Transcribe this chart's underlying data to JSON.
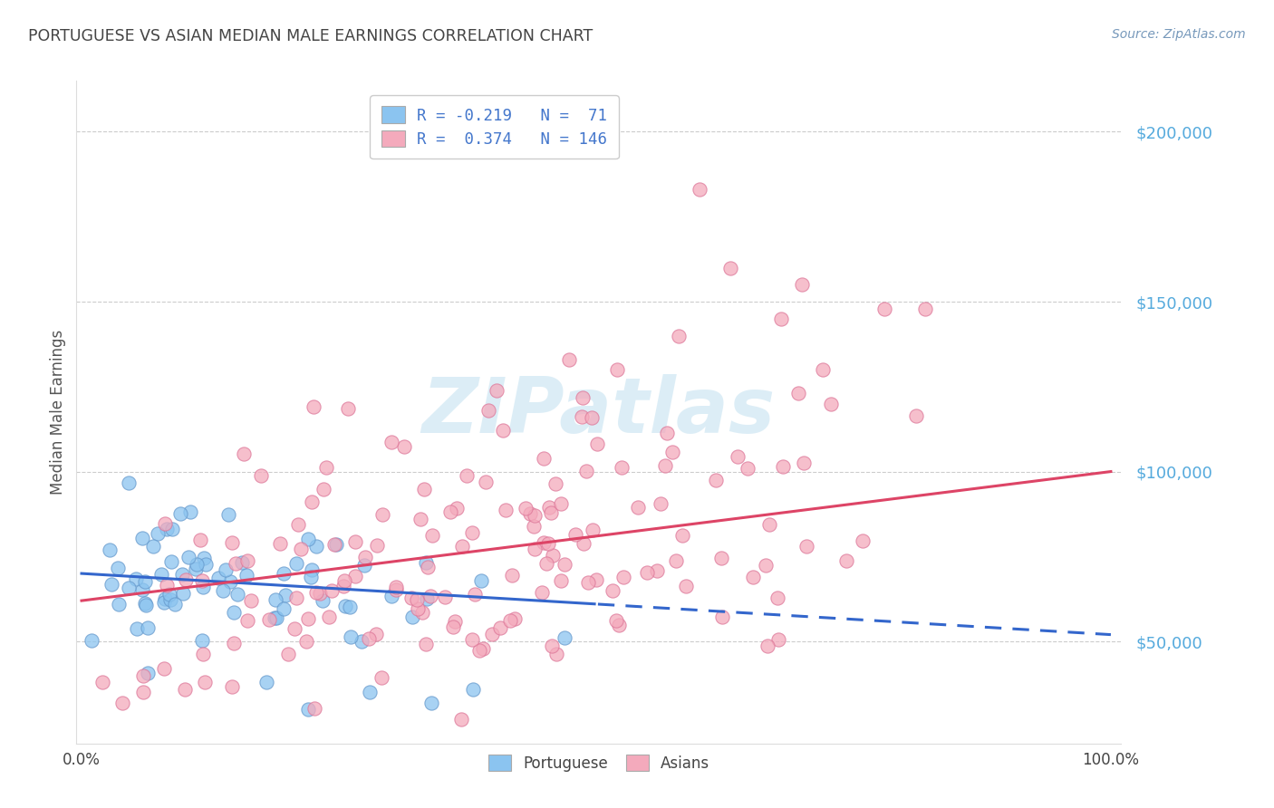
{
  "title": "PORTUGUESE VS ASIAN MEDIAN MALE EARNINGS CORRELATION CHART",
  "source": "Source: ZipAtlas.com",
  "ylabel": "Median Male Earnings",
  "ytick_labels": [
    "$50,000",
    "$100,000",
    "$150,000",
    "$200,000"
  ],
  "ytick_values": [
    50000,
    100000,
    150000,
    200000
  ],
  "blue_color": "#8BC4F0",
  "pink_color": "#F4AABC",
  "blue_line_color": "#3366CC",
  "pink_line_color": "#DD4466",
  "watermark": "ZIPatlas",
  "R_blue": -0.219,
  "R_pink": 0.374,
  "N_blue": 71,
  "N_pink": 146,
  "title_color": "#444444",
  "axis_label_color": "#555555",
  "ytick_color": "#55AADD",
  "xtick_color": "#444444",
  "grid_color": "#CCCCCC",
  "background_color": "#FFFFFF",
  "blue_intercept": 70000,
  "blue_slope": -18000,
  "pink_intercept": 62000,
  "pink_slope": 38000,
  "ylim_min": 20000,
  "ylim_max": 215000,
  "xlim_min": -0.005,
  "xlim_max": 1.01
}
